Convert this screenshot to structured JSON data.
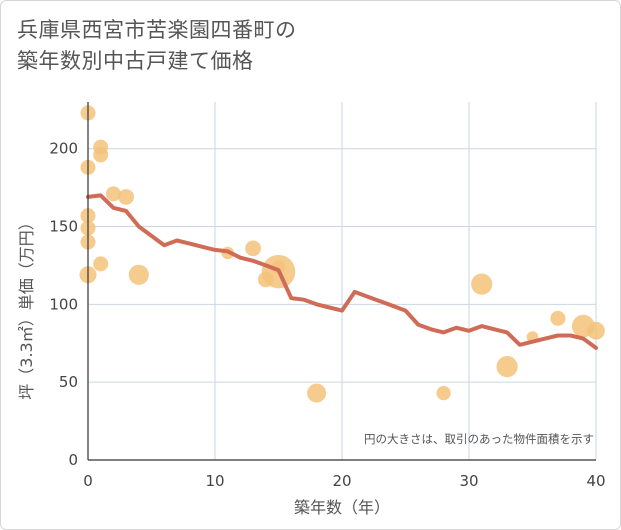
{
  "title_line1": "兵庫県西宮市苦楽園四番町の",
  "title_line2": "築年数別中古戸建て価格",
  "chart_data": {
    "type": "scatter",
    "xlabel": "築年数（年）",
    "ylabel": "坪（3.3㎡）単価（万円）",
    "xlim": [
      0,
      40
    ],
    "ylim": [
      0,
      230
    ],
    "x_ticks": [
      0,
      10,
      20,
      30,
      40
    ],
    "y_ticks": [
      0,
      50,
      100,
      150,
      200
    ],
    "grid": true,
    "annotation": "円の大きさは、取引のあった物件面積を示す",
    "colors": {
      "bubble": "#f3c27a",
      "line": "#d06c56",
      "grid": "#c9d6e3",
      "axis": "#333333"
    },
    "points": [
      {
        "x": 0,
        "y": 223,
        "size": 1
      },
      {
        "x": 0,
        "y": 188,
        "size": 1
      },
      {
        "x": 0,
        "y": 157,
        "size": 1
      },
      {
        "x": 0,
        "y": 149,
        "size": 1
      },
      {
        "x": 0,
        "y": 140,
        "size": 1
      },
      {
        "x": 0,
        "y": 119,
        "size": 1.3
      },
      {
        "x": 1,
        "y": 201,
        "size": 1
      },
      {
        "x": 1,
        "y": 196,
        "size": 1
      },
      {
        "x": 1,
        "y": 126,
        "size": 1
      },
      {
        "x": 2,
        "y": 171,
        "size": 1
      },
      {
        "x": 3,
        "y": 169,
        "size": 1.1
      },
      {
        "x": 4,
        "y": 119,
        "size": 1.8
      },
      {
        "x": 11,
        "y": 133,
        "size": 0.7
      },
      {
        "x": 13,
        "y": 136,
        "size": 1.1
      },
      {
        "x": 14,
        "y": 116,
        "size": 1.1
      },
      {
        "x": 15,
        "y": 121,
        "size": 5
      },
      {
        "x": 15,
        "y": 124,
        "size": 0.8
      },
      {
        "x": 18,
        "y": 43,
        "size": 1.6
      },
      {
        "x": 28,
        "y": 43,
        "size": 0.9
      },
      {
        "x": 31,
        "y": 113,
        "size": 2.0
      },
      {
        "x": 33,
        "y": 60,
        "size": 2.0
      },
      {
        "x": 35,
        "y": 79,
        "size": 0.6
      },
      {
        "x": 37,
        "y": 91,
        "size": 1.0
      },
      {
        "x": 39,
        "y": 86,
        "size": 2.3
      },
      {
        "x": 40,
        "y": 83,
        "size": 1.4
      }
    ],
    "trend": {
      "x": [
        0,
        1,
        2,
        3,
        4,
        5,
        6,
        7,
        8,
        9,
        10,
        11,
        12,
        13,
        14,
        15,
        16,
        17,
        18,
        19,
        20,
        21,
        22,
        23,
        24,
        25,
        26,
        27,
        28,
        29,
        30,
        31,
        32,
        33,
        34,
        35,
        36,
        37,
        38,
        39,
        40
      ],
      "y": [
        169,
        170,
        162,
        160,
        150,
        144,
        138,
        141,
        139,
        137,
        135,
        134,
        130,
        128,
        125,
        122,
        104,
        103,
        100,
        98,
        96,
        108,
        105,
        102,
        99,
        96,
        87,
        84,
        82,
        85,
        83,
        86,
        84,
        82,
        74,
        76,
        78,
        80,
        80,
        78,
        72
      ]
    }
  }
}
